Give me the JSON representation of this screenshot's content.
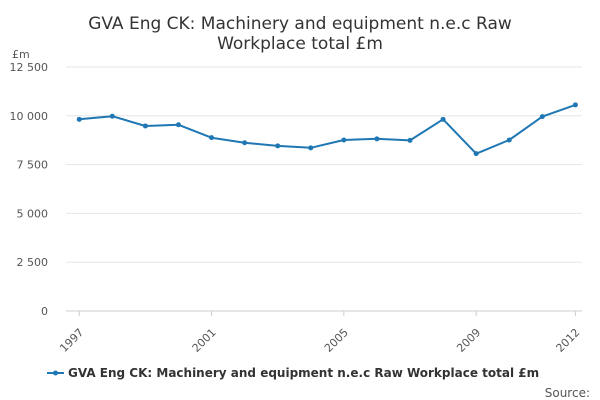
{
  "chart_data": {
    "type": "line",
    "title_lines": [
      "GVA Eng CK: Machinery and equipment n.e.c Raw",
      "Workplace total £m"
    ],
    "y_unit": "£m",
    "ylim": [
      0,
      12500
    ],
    "y_ticks": [
      0,
      2500,
      5000,
      7500,
      10000,
      12500
    ],
    "y_tick_labels": [
      "0",
      "2 500",
      "5 000",
      "7 500",
      "10 000",
      "12 500"
    ],
    "x_ticks": [
      1997,
      2001,
      2005,
      2009,
      2012
    ],
    "x_tick_labels": [
      "1997",
      "2001",
      "2005",
      "2009",
      "2012"
    ],
    "grid": true,
    "legend_position": "bottom",
    "series": [
      {
        "name": "GVA Eng CK: Machinery and equipment n.e.c Raw Workplace total £m",
        "color": "#1f77b4",
        "x": [
          1997,
          1998,
          1999,
          2000,
          2001,
          2002,
          2003,
          2004,
          2005,
          2006,
          2007,
          2008,
          2009,
          2010,
          2011,
          2012
        ],
        "values": [
          9820,
          9980,
          9480,
          9540,
          8880,
          8620,
          8460,
          8360,
          8760,
          8820,
          8740,
          9820,
          8060,
          8760,
          9960,
          10560
        ]
      }
    ],
    "source_label": "Source:"
  }
}
